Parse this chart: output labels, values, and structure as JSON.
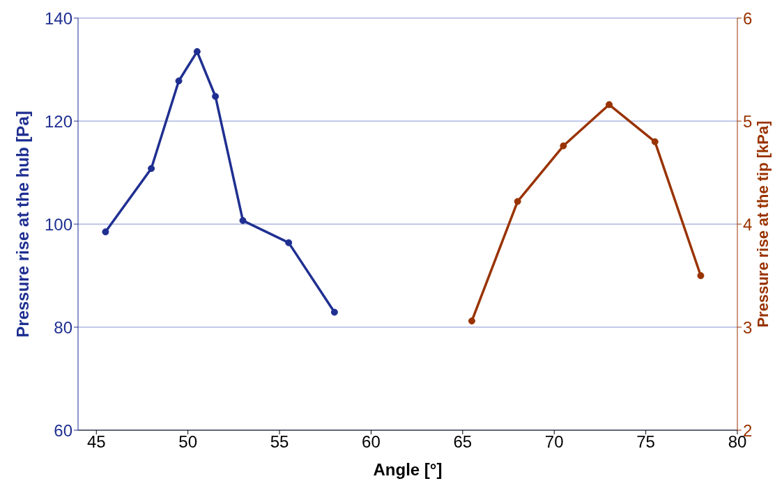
{
  "chart_data": {
    "type": "line",
    "xlabel": "Angle [°]",
    "ylabel": "Pressure rise at the hub [Pa]",
    "y2label": "Pressure rise at the tip [kPa]",
    "xlim": [
      44,
      80
    ],
    "xticks": [
      45,
      50,
      55,
      60,
      65,
      70,
      75,
      80
    ],
    "ylim": [
      60,
      140
    ],
    "yticks": [
      60,
      80,
      100,
      120,
      140
    ],
    "y2lim": [
      2,
      6
    ],
    "y2ticks": [
      2,
      3,
      4,
      5,
      6
    ],
    "grid": "y",
    "marker": "circle",
    "line_style": "solid",
    "series": [
      {
        "color": "#1f2f91",
        "axis": "y",
        "x": [
          45.5,
          48,
          49.5,
          50.5,
          51.5,
          53,
          55.5,
          58
        ],
        "values": [
          98.5,
          110.8,
          127.8,
          133.5,
          124.8,
          100.7,
          96.4,
          82.9
        ]
      },
      {
        "color": "#993300",
        "axis": "y2",
        "x": [
          65.5,
          68,
          70.5,
          73,
          75.5,
          78
        ],
        "values": [
          3.06,
          4.22,
          4.76,
          5.16,
          4.8,
          3.5
        ]
      }
    ]
  }
}
